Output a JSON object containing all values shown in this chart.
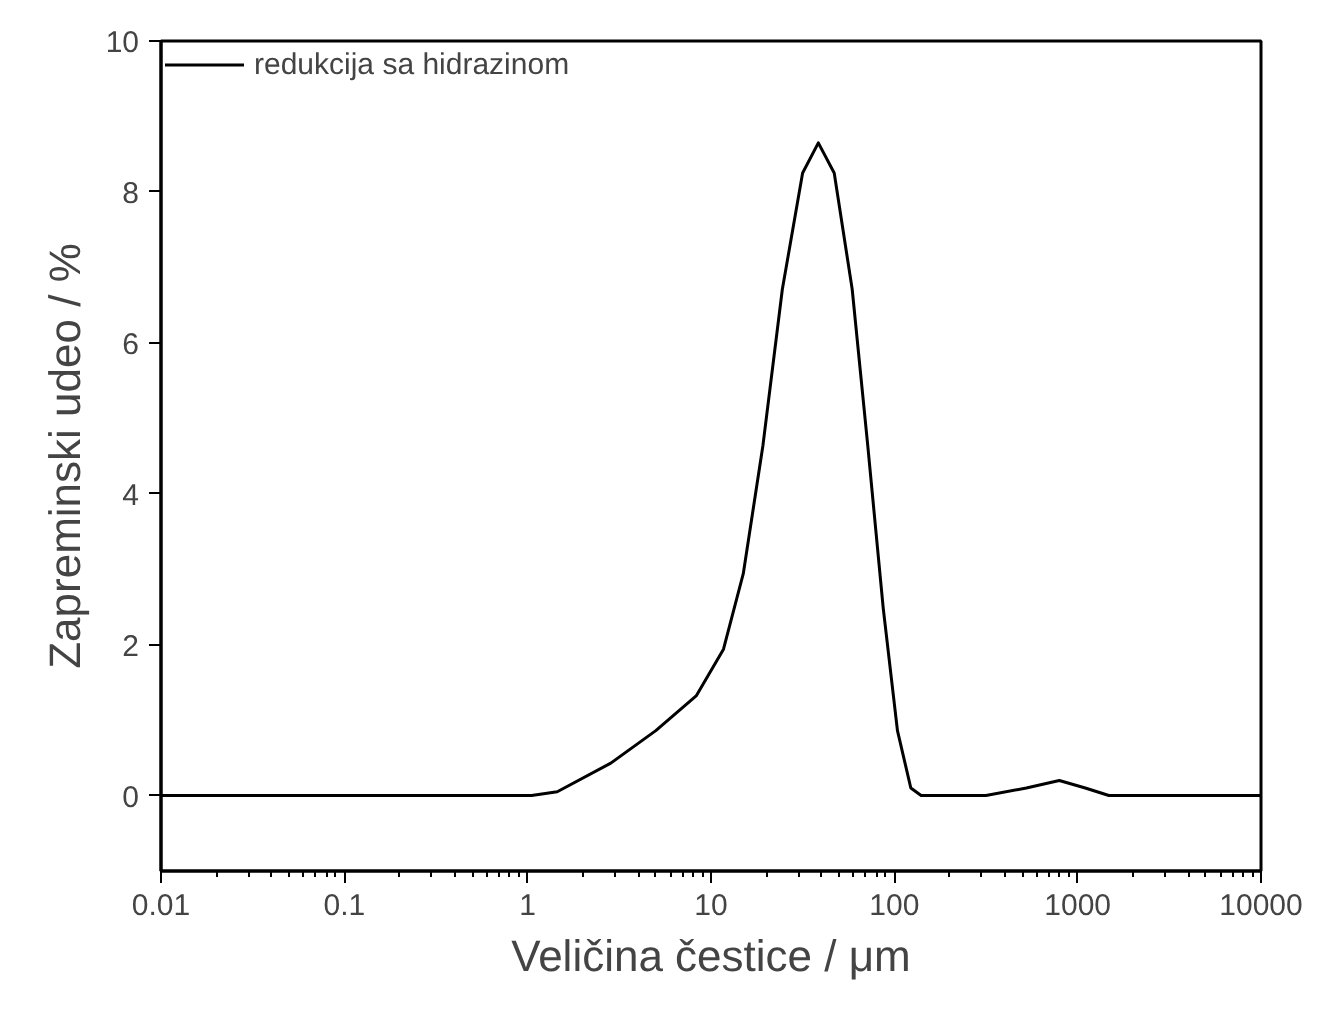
{
  "chart_data": {
    "type": "line",
    "xlabel": "Veličina čestice / μm",
    "ylabel": "Zapreminski udeo / %",
    "log": "x",
    "xlim": [
      0.01,
      10000
    ],
    "ylim": [
      -1,
      10
    ],
    "xticks": [
      0.01,
      0.1,
      1,
      10,
      100,
      1000,
      10000
    ],
    "yticks": [
      0,
      2,
      4,
      6,
      8,
      10
    ],
    "legend": "top left",
    "grid": false,
    "marker": "none",
    "line_style": "solid",
    "series": [
      {
        "name": "redukcija sa hidrazinom",
        "color": "#000000",
        "x": [
          0.01,
          1.05,
          1.45,
          2.84,
          5.0,
          8.3,
          11.7,
          15,
          19.2,
          24.5,
          31.6,
          38.5,
          47,
          58.9,
          71.6,
          87,
          104,
          123,
          140,
          316,
          525,
          794,
          1100,
          1480,
          10000
        ],
        "values": [
          0,
          0,
          0.05,
          0.43,
          0.86,
          1.32,
          1.94,
          2.94,
          4.64,
          6.71,
          8.25,
          8.65,
          8.25,
          6.71,
          4.64,
          2.48,
          0.86,
          0.1,
          0,
          0,
          0.1,
          0.2,
          0.1,
          0,
          0
        ]
      }
    ]
  }
}
